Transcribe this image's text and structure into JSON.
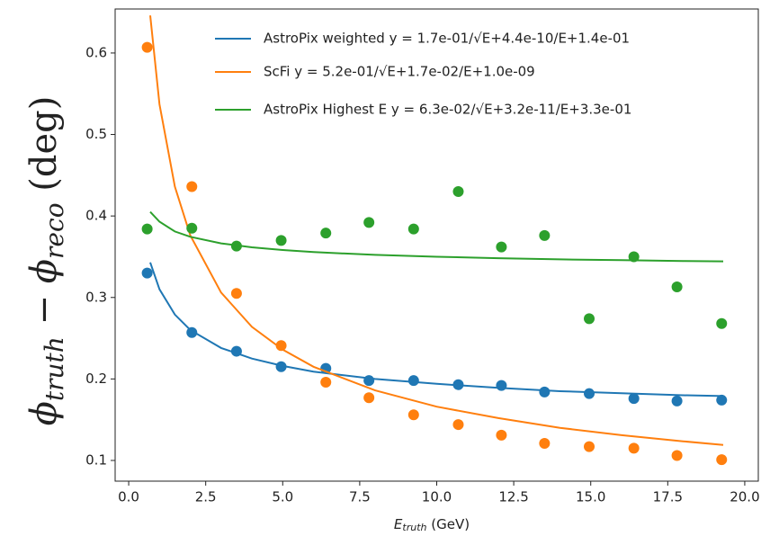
{
  "chart_data": {
    "type": "scatter",
    "xlabel": [
      "E",
      "truth",
      " (GeV)"
    ],
    "ylabel": [
      "ϕ",
      "truth",
      " − ϕ",
      "reco",
      " (deg)"
    ],
    "xlim": [
      -0.44,
      20.44
    ],
    "ylim": [
      0.0746,
      0.654
    ],
    "xticks": [
      {
        "value": 0,
        "label": "0.0"
      },
      2.5,
      {
        "value": 5,
        "label": "5.0"
      },
      7.5,
      {
        "value": 10,
        "label": "10.0"
      },
      12.5,
      {
        "value": 15,
        "label": "15.0"
      },
      17.5,
      {
        "value": 20,
        "label": "20.0"
      }
    ],
    "yticks": [
      0.1,
      0.2,
      0.3,
      0.4,
      0.5,
      0.6
    ],
    "grid": false,
    "legend": "upper right",
    "series": [
      {
        "name": "AstroPix weighted y = 1.7e-01/√E+4.4e-10/E+1.4e-01",
        "color": "#1f77b4",
        "x": [
          0.6,
          2.05,
          3.5,
          4.95,
          6.4,
          7.8,
          9.25,
          10.7,
          12.1,
          13.5,
          14.95,
          16.4,
          17.8,
          19.25
        ],
        "values": [
          0.33,
          0.257,
          0.234,
          0.215,
          0.213,
          0.198,
          0.198,
          0.193,
          0.192,
          0.184,
          0.182,
          0.176,
          0.173,
          0.174
        ],
        "fit": {
          "x": [
            0.7,
            1,
            1.5,
            2,
            3,
            4,
            5,
            6,
            8,
            10,
            12,
            14,
            16,
            18,
            19.3
          ],
          "values": [
            0.343,
            0.31,
            0.279,
            0.26,
            0.238,
            0.225,
            0.216,
            0.209,
            0.2,
            0.194,
            0.189,
            0.185,
            0.1825,
            0.18,
            0.179
          ]
        }
      },
      {
        "name": "ScFi y = 5.2e-01/√E+1.7e-02/E+1.0e-09",
        "color": "#ff7f0e",
        "x": [
          0.6,
          2.05,
          3.5,
          4.95,
          6.4,
          7.8,
          9.25,
          10.7,
          12.1,
          13.5,
          14.95,
          16.4,
          17.8,
          19.25
        ],
        "values": [
          0.607,
          0.436,
          0.305,
          0.241,
          0.196,
          0.177,
          0.156,
          0.144,
          0.131,
          0.121,
          0.117,
          0.115,
          0.106,
          0.101
        ],
        "fit": {
          "x": [
            0.7,
            1,
            1.5,
            2,
            3,
            4,
            5,
            6,
            8,
            10,
            12,
            14,
            16,
            18,
            19.3
          ],
          "values": [
            0.646,
            0.537,
            0.436,
            0.376,
            0.306,
            0.264,
            0.236,
            0.215,
            0.186,
            0.166,
            0.152,
            0.14,
            0.131,
            0.1235,
            0.119
          ]
        }
      },
      {
        "name": "AstroPix Highest E y = 6.3e-02/√E+3.2e-11/E+3.3e-01",
        "color": "#2ca02c",
        "x": [
          0.6,
          2.05,
          3.5,
          4.95,
          6.4,
          7.8,
          9.25,
          10.7,
          12.1,
          13.5,
          14.95,
          16.4,
          17.8,
          19.25
        ],
        "values": [
          0.384,
          0.385,
          0.363,
          0.37,
          0.379,
          0.392,
          0.384,
          0.43,
          0.362,
          0.376,
          0.274,
          0.35,
          0.313,
          0.268
        ],
        "fit": {
          "x": [
            0.7,
            1,
            1.5,
            2,
            3,
            4,
            5,
            6,
            8,
            10,
            12,
            14,
            16,
            18,
            19.3
          ],
          "values": [
            0.405,
            0.393,
            0.381,
            0.3745,
            0.3664,
            0.3615,
            0.3582,
            0.3557,
            0.3523,
            0.3499,
            0.3482,
            0.3468,
            0.3458,
            0.3448,
            0.3443
          ]
        }
      }
    ]
  }
}
